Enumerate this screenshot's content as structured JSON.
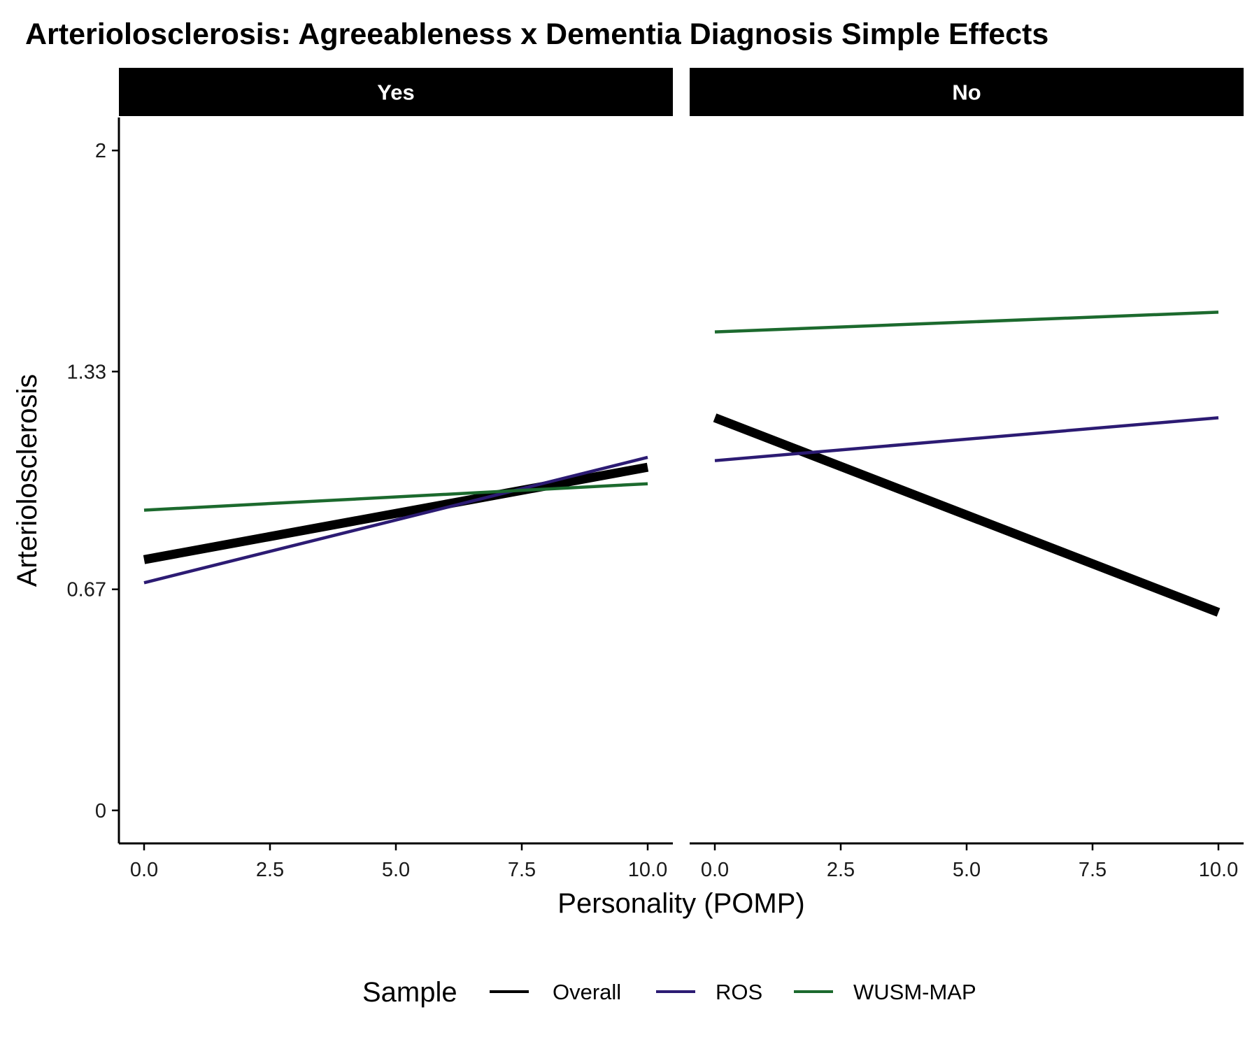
{
  "chart_data": {
    "type": "line",
    "title": "Arteriolosclerosis: Agreeableness x Dementia Diagnosis Simple Effects",
    "xlabel": "Personality (POMP)",
    "ylabel": "Arteriolosclerosis",
    "xlim": [
      -0.5,
      10.5
    ],
    "ylim": [
      -0.1,
      2.1
    ],
    "x_ticks": [
      0,
      2.5,
      5,
      7.5,
      10
    ],
    "x_tick_labels": [
      "0.0",
      "2.5",
      "5.0",
      "7.5",
      "10.0"
    ],
    "y_ticks": [
      0,
      0.67,
      1.33,
      2
    ],
    "y_tick_labels": [
      "0",
      "0.67",
      "1.33",
      "2"
    ],
    "grid": false,
    "legend": {
      "title": "Sample",
      "position": "bottom",
      "entries": [
        "Overall",
        "ROS",
        "WUSM-MAP"
      ]
    },
    "series_colors": {
      "Overall": "#000000",
      "ROS": "#2c1b73",
      "WUSM-MAP": "#1c6a2e"
    },
    "panels": [
      {
        "label": "Yes",
        "series": [
          {
            "name": "Overall",
            "x": [
              0,
              10
            ],
            "y": [
              0.76,
              1.04
            ]
          },
          {
            "name": "ROS",
            "x": [
              0,
              10
            ],
            "y": [
              0.69,
              1.07
            ]
          },
          {
            "name": "WUSM-MAP",
            "x": [
              0,
              10
            ],
            "y": [
              0.91,
              0.99
            ]
          }
        ]
      },
      {
        "label": "No",
        "series": [
          {
            "name": "Overall",
            "x": [
              0,
              10
            ],
            "y": [
              1.19,
              0.6
            ]
          },
          {
            "name": "ROS",
            "x": [
              0,
              10
            ],
            "y": [
              1.06,
              1.19
            ]
          },
          {
            "name": "WUSM-MAP",
            "x": [
              0,
              10
            ],
            "y": [
              1.45,
              1.51
            ]
          }
        ]
      }
    ]
  }
}
